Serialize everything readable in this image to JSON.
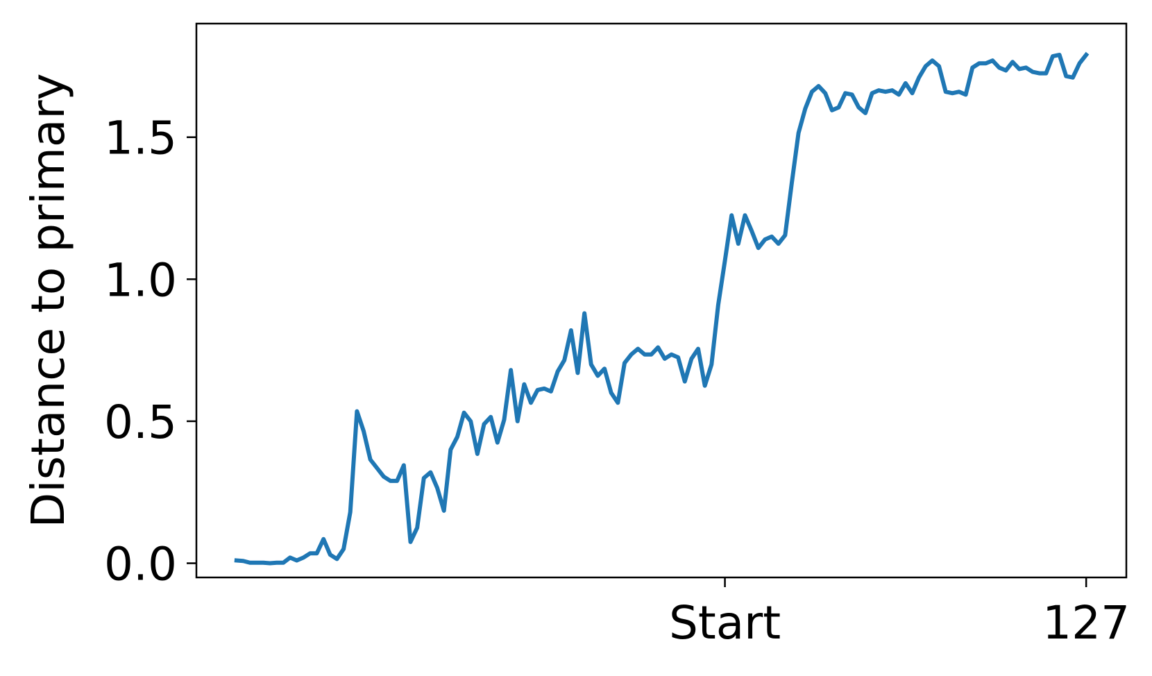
{
  "chart_data": {
    "type": "line",
    "title": "",
    "xlabel": "",
    "ylabel": "Distance to primary",
    "xlim": [
      -6,
      133
    ],
    "ylim": [
      -0.05,
      1.9
    ],
    "xticks": [
      {
        "value": 73,
        "label": "Start"
      },
      {
        "value": 127,
        "label": "127"
      }
    ],
    "yticks": [
      {
        "value": 0.0,
        "label": "0.0"
      },
      {
        "value": 0.5,
        "label": "0.5"
      },
      {
        "value": 1.0,
        "label": "1.0"
      },
      {
        "value": 1.5,
        "label": "1.5"
      }
    ],
    "grid": false,
    "legend": "none",
    "series": [
      {
        "color": "#1f77b4",
        "x": [
          0,
          1,
          2,
          3,
          4,
          5,
          6,
          7,
          8,
          9,
          10,
          11,
          12,
          13,
          14,
          15,
          16,
          17,
          18,
          19,
          20,
          21,
          22,
          23,
          24,
          25,
          26,
          27,
          28,
          29,
          30,
          31,
          32,
          33,
          34,
          35,
          36,
          37,
          38,
          39,
          40,
          41,
          42,
          43,
          44,
          45,
          46,
          47,
          48,
          49,
          50,
          51,
          52,
          53,
          54,
          55,
          56,
          57,
          58,
          59,
          60,
          61,
          62,
          63,
          64,
          65,
          66,
          67,
          68,
          69,
          70,
          71,
          72,
          73,
          74,
          75,
          76,
          77,
          78,
          79,
          80,
          81,
          82,
          83,
          84,
          85,
          86,
          87,
          88,
          89,
          90,
          91,
          92,
          93,
          94,
          95,
          96,
          97,
          98,
          99,
          100,
          101,
          102,
          103,
          104,
          105,
          106,
          107,
          108,
          109,
          110,
          111,
          112,
          113,
          114,
          115,
          116,
          117,
          118,
          119,
          120,
          121,
          122,
          123,
          124,
          125,
          126,
          127
        ],
        "values": [
          0.01,
          0.008,
          0.002,
          0.002,
          0.002,
          0.0,
          0.002,
          0.002,
          0.02,
          0.01,
          0.02,
          0.035,
          0.035,
          0.085,
          0.03,
          0.015,
          0.05,
          0.18,
          0.535,
          0.465,
          0.365,
          0.335,
          0.305,
          0.29,
          0.29,
          0.345,
          0.075,
          0.125,
          0.3,
          0.32,
          0.265,
          0.185,
          0.4,
          0.445,
          0.53,
          0.5,
          0.385,
          0.49,
          0.515,
          0.425,
          0.505,
          0.68,
          0.5,
          0.63,
          0.565,
          0.61,
          0.615,
          0.605,
          0.675,
          0.715,
          0.82,
          0.67,
          0.88,
          0.7,
          0.66,
          0.685,
          0.6,
          0.565,
          0.705,
          0.735,
          0.755,
          0.735,
          0.735,
          0.76,
          0.72,
          0.735,
          0.725,
          0.64,
          0.72,
          0.755,
          0.625,
          0.7,
          0.91,
          1.065,
          1.225,
          1.125,
          1.225,
          1.17,
          1.11,
          1.14,
          1.15,
          1.125,
          1.155,
          1.34,
          1.515,
          1.6,
          1.66,
          1.68,
          1.655,
          1.595,
          1.605,
          1.655,
          1.65,
          1.605,
          1.585,
          1.655,
          1.665,
          1.66,
          1.665,
          1.65,
          1.69,
          1.655,
          1.71,
          1.75,
          1.77,
          1.75,
          1.66,
          1.655,
          1.66,
          1.65,
          1.745,
          1.76,
          1.76,
          1.77,
          1.745,
          1.735,
          1.765,
          1.74,
          1.745,
          1.73,
          1.725,
          1.725,
          1.785,
          1.79,
          1.715,
          1.71,
          1.76,
          1.79
        ]
      }
    ]
  }
}
